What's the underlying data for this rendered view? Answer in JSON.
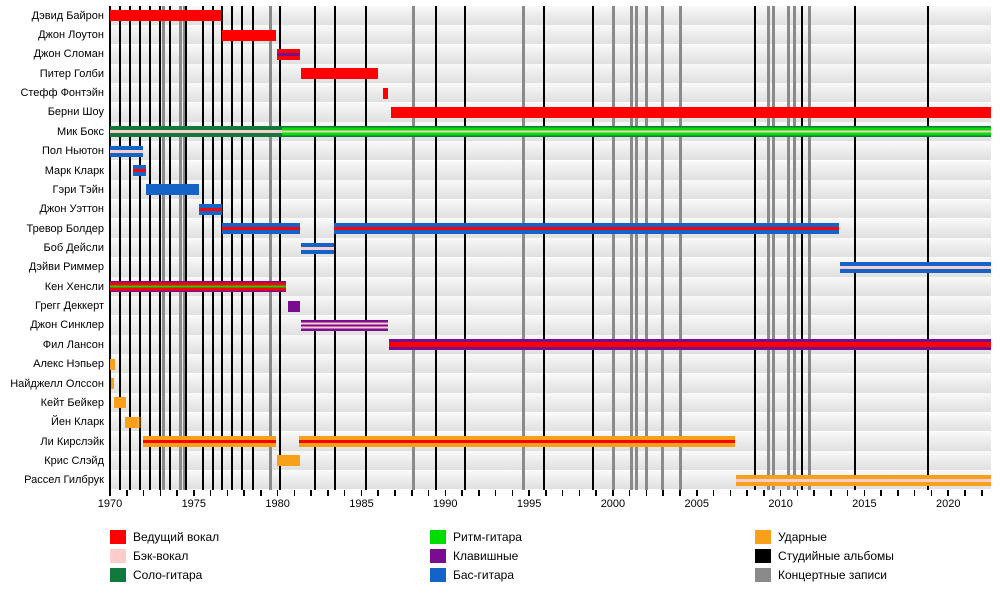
{
  "chart_data": {
    "type": "timeline",
    "description": "Band members timeline chart with studio albums and live recordings markers",
    "x_axis": {
      "min": 1970,
      "max": 2022.55,
      "minor_tick_interval": 1,
      "labeled_ticks": [
        1970,
        1975,
        1980,
        1985,
        1990,
        1995,
        2000,
        2005,
        2010,
        2015,
        2020
      ],
      "labels": [
        "1970",
        "1975",
        "1980",
        "1985",
        "1990",
        "1995",
        "2000",
        "2005",
        "2010",
        "2015",
        "2020"
      ]
    },
    "colors": {
      "lead_vocals": "#FF0000",
      "backing_vocals": "#FFCCCC",
      "lead_guitar": "#107A3D",
      "rhythm_guitar": "#00DD00",
      "keyboards": "#7A0D8F",
      "bass_guitar": "#1464C8",
      "drums": "#F9A01B",
      "studio_album_line": "#000000",
      "live_recording_line": "#8A8A8A"
    },
    "members": [
      {
        "name": "Дэвид Байрон",
        "bars": [
          {
            "start": 1970.0,
            "end": 1976.6,
            "stripes": [
              [
                "lead_vocals",
                1
              ]
            ]
          }
        ]
      },
      {
        "name": "Джон Лоутон",
        "bars": [
          {
            "start": 1976.7,
            "end": 1979.9,
            "stripes": [
              [
                "lead_vocals",
                1
              ]
            ]
          }
        ]
      },
      {
        "name": "Джон Сломан",
        "bars": [
          {
            "start": 1979.95,
            "end": 1981.35,
            "stripes": [
              [
                "lead_vocals",
                3.5
              ],
              [
                "keyboards",
                2.5
              ],
              [
                "lead_vocals",
                3.5
              ]
            ]
          }
        ]
      },
      {
        "name": "Питер Голби",
        "bars": [
          {
            "start": 1981.4,
            "end": 1986.0,
            "stripes": [
              [
                "lead_vocals",
                1
              ]
            ]
          }
        ]
      },
      {
        "name": "Стефф Фонтэйн",
        "bars": [
          {
            "start": 1986.3,
            "end": 1986.6,
            "stripes": [
              [
                "lead_vocals",
                1
              ]
            ]
          }
        ]
      },
      {
        "name": "Берни Шоу",
        "bars": [
          {
            "start": 1986.75,
            "end": 2022.55,
            "stripes": [
              [
                "lead_vocals",
                1
              ]
            ]
          }
        ]
      },
      {
        "name": "Мик Бокс",
        "bars": [
          {
            "start": 1970.0,
            "end": 1980.25,
            "stripes": [
              [
                "lead_guitar",
                3.5
              ],
              [
                "backing_vocals",
                3
              ],
              [
                "lead_guitar",
                3.5
              ]
            ]
          },
          {
            "start": 1980.25,
            "end": 2022.55,
            "stripes": [
              [
                "lead_guitar",
                1.3
              ],
              [
                "rhythm_guitar",
                2.7
              ],
              [
                "backing_vocals",
                2
              ],
              [
                "rhythm_guitar",
                2.7
              ],
              [
                "lead_guitar",
                1.3
              ]
            ]
          }
        ]
      },
      {
        "name": "Пол Ньютон",
        "bars": [
          {
            "start": 1970.0,
            "end": 1971.95,
            "stripes": [
              [
                "bass_guitar",
                3
              ],
              [
                "backing_vocals",
                2.6
              ],
              [
                "bass_guitar",
                3
              ]
            ]
          }
        ]
      },
      {
        "name": "Марк Кларк",
        "bars": [
          {
            "start": 1971.35,
            "end": 1972.15,
            "stripes": [
              [
                "bass_guitar",
                3
              ],
              [
                "lead_vocals",
                2.6
              ],
              [
                "bass_guitar",
                3
              ]
            ]
          }
        ]
      },
      {
        "name": "Гэри Тэйн",
        "bars": [
          {
            "start": 1972.15,
            "end": 1975.3,
            "stripes": [
              [
                "bass_guitar",
                1
              ]
            ]
          }
        ]
      },
      {
        "name": "Джон Уэттон",
        "bars": [
          {
            "start": 1975.3,
            "end": 1976.7,
            "stripes": [
              [
                "bass_guitar",
                3
              ],
              [
                "lead_vocals",
                2.6
              ],
              [
                "bass_guitar",
                3
              ]
            ]
          }
        ]
      },
      {
        "name": "Тревор Болдер",
        "bars": [
          {
            "start": 1976.7,
            "end": 1981.35,
            "stripes": [
              [
                "bass_guitar",
                3
              ],
              [
                "lead_vocals",
                2.6
              ],
              [
                "bass_guitar",
                3
              ]
            ]
          },
          {
            "start": 1983.35,
            "end": 2013.5,
            "stripes": [
              [
                "bass_guitar",
                3
              ],
              [
                "lead_vocals",
                2.6
              ],
              [
                "bass_guitar",
                3
              ]
            ]
          }
        ]
      },
      {
        "name": "Боб Дейсли",
        "bars": [
          {
            "start": 1981.4,
            "end": 1983.35,
            "stripes": [
              [
                "bass_guitar",
                3
              ],
              [
                "backing_vocals",
                2.6
              ],
              [
                "bass_guitar",
                3
              ]
            ]
          }
        ]
      },
      {
        "name": "Дэйви Риммер",
        "bars": [
          {
            "start": 2013.55,
            "end": 2022.55,
            "stripes": [
              [
                "bass_guitar",
                3
              ],
              [
                "backing_vocals",
                2.6
              ],
              [
                "bass_guitar",
                3
              ]
            ]
          }
        ]
      },
      {
        "name": "Кен Хенсли",
        "bars": [
          {
            "start": 1970.0,
            "end": 1980.5,
            "stripes": [
              [
                "keyboards",
                1.4
              ],
              [
                "lead_vocals",
                2.7
              ],
              [
                "rhythm_guitar",
                2.2
              ],
              [
                "lead_vocals",
                2.7
              ],
              [
                "keyboards",
                1.4
              ]
            ]
          }
        ]
      },
      {
        "name": "Грегг Деккерт",
        "bars": [
          {
            "start": 1980.6,
            "end": 1981.35,
            "stripes": [
              [
                "keyboards",
                1
              ]
            ]
          }
        ]
      },
      {
        "name": "Джон Синклер",
        "bars": [
          {
            "start": 1981.4,
            "end": 1986.6,
            "stripes": [
              [
                "keyboards",
                2
              ],
              [
                "backing_vocals",
                2
              ],
              [
                "keyboards",
                1.6
              ],
              [
                "backing_vocals",
                2
              ],
              [
                "keyboards",
                2
              ]
            ]
          }
        ]
      },
      {
        "name": "Фил Лансон",
        "bars": [
          {
            "start": 1986.65,
            "end": 2022.55,
            "stripes": [
              [
                "keyboards",
                2.5
              ],
              [
                "lead_vocals",
                5
              ],
              [
                "keyboards",
                2.5
              ]
            ]
          }
        ]
      },
      {
        "name": "Алекс Нэпьер",
        "bars": [
          {
            "start": 1970.0,
            "end": 1970.3,
            "stripes": [
              [
                "drums",
                1
              ]
            ]
          }
        ]
      },
      {
        "name": "Найджелл Олссон",
        "bars": [
          {
            "start": 1970.05,
            "end": 1970.22,
            "stripes": [
              [
                "drums",
                1
              ]
            ]
          }
        ]
      },
      {
        "name": "Кейт Бейкер",
        "bars": [
          {
            "start": 1970.25,
            "end": 1970.95,
            "stripes": [
              [
                "drums",
                1
              ]
            ]
          }
        ]
      },
      {
        "name": "Йен Кларк",
        "bars": [
          {
            "start": 1970.9,
            "end": 1971.95,
            "stripes": [
              [
                "drums",
                1
              ]
            ],
            "fade_right": true
          }
        ]
      },
      {
        "name": "Ли Кирслэйк",
        "bars": [
          {
            "start": 1971.95,
            "end": 1979.9,
            "stripes": [
              [
                "drums",
                3
              ],
              [
                "lead_vocals",
                2.6
              ],
              [
                "drums",
                3
              ]
            ]
          },
          {
            "start": 1981.3,
            "end": 2007.3,
            "stripes": [
              [
                "drums",
                3
              ],
              [
                "lead_vocals",
                2.6
              ],
              [
                "drums",
                3
              ]
            ]
          }
        ]
      },
      {
        "name": "Крис Слэйд",
        "bars": [
          {
            "start": 1979.95,
            "end": 1981.35,
            "stripes": [
              [
                "drums",
                1
              ]
            ]
          }
        ]
      },
      {
        "name": "Рассел Гилбрук",
        "bars": [
          {
            "start": 2007.35,
            "end": 2022.55,
            "stripes": [
              [
                "drums",
                3
              ],
              [
                "backing_vocals",
                2.6
              ],
              [
                "drums",
                3
              ]
            ]
          }
        ]
      }
    ],
    "studio_albums": [
      1970.6,
      1971.2,
      1971.8,
      1972.4,
      1973.0,
      1973.6,
      1974.55,
      1975.55,
      1976.15,
      1976.7,
      1977.3,
      1977.9,
      1978.5,
      1980.15,
      1982.25,
      1983.45,
      1985.25,
      1989.45,
      1991.2,
      1995.9,
      1998.8,
      2008.5,
      2011.3,
      2014.45,
      2018.8
    ],
    "live_recordings": [
      1973.2,
      1974.2,
      1974.42,
      1979.55,
      1988.1,
      1994.65,
      2000.05,
      2001.1,
      2001.4,
      2002.0,
      2002.95,
      2004.05,
      2009.3,
      2009.6,
      2010.45,
      2010.8,
      2011.7
    ],
    "legend": [
      {
        "label": "Ведущий вокал",
        "color_key": "lead_vocals"
      },
      {
        "label": "Бэк-вокал",
        "color_key": "backing_vocals"
      },
      {
        "label": "Соло-гитара",
        "color_key": "lead_guitar"
      },
      {
        "label": "Ритм-гитара",
        "color_key": "rhythm_guitar"
      },
      {
        "label": "Клавишные",
        "color_key": "keyboards"
      },
      {
        "label": "Бас-гитара",
        "color_key": "bass_guitar"
      },
      {
        "label": "Ударные",
        "color_key": "drums"
      },
      {
        "label": "Студийные альбомы",
        "color_key": "studio_album_line"
      },
      {
        "label": "Концертные записи",
        "color_key": "live_recording_line"
      }
    ],
    "legend_position": "bottom",
    "grid": "vertical album/recording lines, zebra row bands"
  }
}
